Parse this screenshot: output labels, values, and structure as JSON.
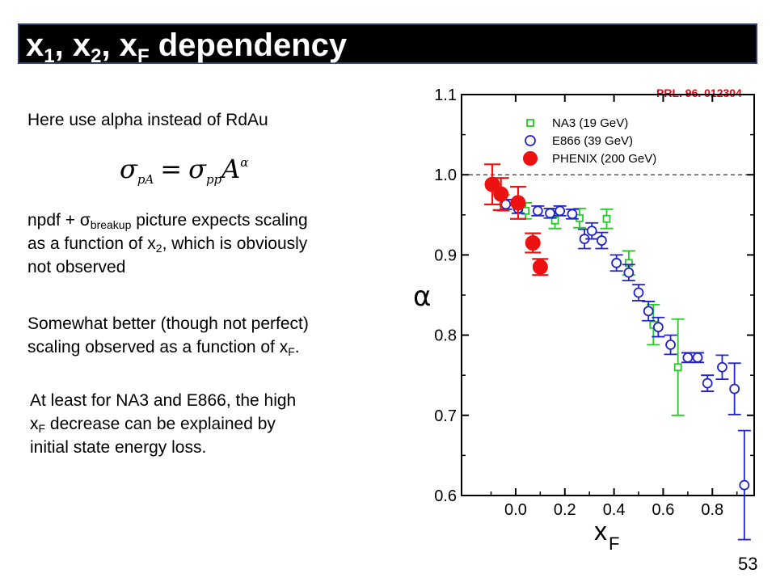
{
  "slide": {
    "title": {
      "a": "x",
      "a_sub": "1",
      "sep1": ", x",
      "b_sub": "2",
      "sep2": ", x",
      "c_sub": "F",
      "rest": " dependency"
    },
    "citation": "PRL. 96. 012304",
    "line1": "Here use alpha instead of RdAu",
    "formula": {
      "sigma": "σ",
      "sub1": "pA",
      "eq": "=",
      "sigma2": "σ",
      "sub2": "pp",
      "A": "A",
      "sup": "α"
    },
    "para1": {
      "l1_pre": "npdf + ",
      "sigma": "σ",
      "sigma_sub": "breakup",
      "l1_post": " picture expects scaling",
      "l2_pre": "as a function of x",
      "l2_sub": "2",
      "l2_post": ", which is obviously",
      "l3": "not observed"
    },
    "para2": {
      "l1": "Somewhat better (though not perfect)",
      "l2_pre": "scaling observed as a function of x",
      "l2_sub": "F",
      "l2_post": "."
    },
    "para3": {
      "l1": "At least for NA3 and E866, the high",
      "l2_pre": "x",
      "l2_sub": "F",
      "l2_post": " decrease can be explained by",
      "l3": "initial state energy loss."
    },
    "page_number": "53"
  },
  "chart_data": {
    "type": "scatter",
    "xlabel": "x",
    "xlabel_sub": "F",
    "ylabel": "α",
    "xlim": [
      -0.22,
      0.97
    ],
    "ylim": [
      0.6,
      1.1
    ],
    "xticks": [
      0.0,
      0.2,
      0.4,
      0.6,
      0.8
    ],
    "xtick_labels": [
      "0.0",
      "0.2",
      "0.4",
      "0.6",
      "0.8"
    ],
    "yticks": [
      0.6,
      0.7,
      0.8,
      0.9,
      1.0,
      1.1
    ],
    "ytick_labels": [
      "0.6",
      "0.7",
      "0.8",
      "0.9",
      "1.0",
      "1.1"
    ],
    "reference_line": 1.0,
    "legend_position": "top-right",
    "colors": {
      "NA3": "#22cc22",
      "E866": "#2222cc",
      "PHENIX": "#ee1111"
    },
    "series": [
      {
        "name": "NA3 (19 GeV)",
        "marker": "open-square",
        "color": "#22cc22",
        "points": [
          {
            "x": -0.05,
            "y": 0.965,
            "err": 0.01
          },
          {
            "x": 0.04,
            "y": 0.955,
            "err": 0.01
          },
          {
            "x": 0.16,
            "y": 0.943,
            "err": 0.01
          },
          {
            "x": 0.26,
            "y": 0.946,
            "err": 0.012
          },
          {
            "x": 0.37,
            "y": 0.945,
            "err": 0.012
          },
          {
            "x": 0.46,
            "y": 0.89,
            "err": 0.015
          },
          {
            "x": 0.56,
            "y": 0.813,
            "err": 0.025
          },
          {
            "x": 0.66,
            "y": 0.76,
            "err": 0.06
          }
        ]
      },
      {
        "name": "E866 (39 GeV)",
        "marker": "open-circle",
        "color": "#2222cc",
        "points": [
          {
            "x": -0.04,
            "y": 0.963,
            "err": 0.006
          },
          {
            "x": 0.01,
            "y": 0.958,
            "err": 0.006
          },
          {
            "x": 0.09,
            "y": 0.955,
            "err": 0.006
          },
          {
            "x": 0.14,
            "y": 0.952,
            "err": 0.006
          },
          {
            "x": 0.18,
            "y": 0.955,
            "err": 0.006
          },
          {
            "x": 0.23,
            "y": 0.951,
            "err": 0.006
          },
          {
            "x": 0.28,
            "y": 0.92,
            "err": 0.012
          },
          {
            "x": 0.31,
            "y": 0.93,
            "err": 0.01
          },
          {
            "x": 0.35,
            "y": 0.918,
            "err": 0.01
          },
          {
            "x": 0.41,
            "y": 0.89,
            "err": 0.01
          },
          {
            "x": 0.46,
            "y": 0.878,
            "err": 0.01
          },
          {
            "x": 0.5,
            "y": 0.853,
            "err": 0.01
          },
          {
            "x": 0.54,
            "y": 0.83,
            "err": 0.012
          },
          {
            "x": 0.58,
            "y": 0.81,
            "err": 0.012
          },
          {
            "x": 0.63,
            "y": 0.788,
            "err": 0.012
          },
          {
            "x": 0.7,
            "y": 0.772,
            "err": 0.006
          },
          {
            "x": 0.74,
            "y": 0.772,
            "err": 0.006
          },
          {
            "x": 0.78,
            "y": 0.74,
            "err": 0.01
          },
          {
            "x": 0.84,
            "y": 0.76,
            "err": 0.015
          },
          {
            "x": 0.89,
            "y": 0.733,
            "err": 0.032
          },
          {
            "x": 0.93,
            "y": 0.613,
            "err": 0.068
          }
        ]
      },
      {
        "name": "PHENIX (200 GeV)",
        "marker": "filled-circle",
        "color": "#ee1111",
        "points": [
          {
            "x": -0.095,
            "y": 0.988,
            "err": 0.025
          },
          {
            "x": -0.06,
            "y": 0.976,
            "err": 0.02
          },
          {
            "x": 0.01,
            "y": 0.965,
            "err": 0.02
          },
          {
            "x": 0.07,
            "y": 0.915,
            "err": 0.012
          },
          {
            "x": 0.1,
            "y": 0.885,
            "err": 0.01
          }
        ]
      }
    ]
  }
}
